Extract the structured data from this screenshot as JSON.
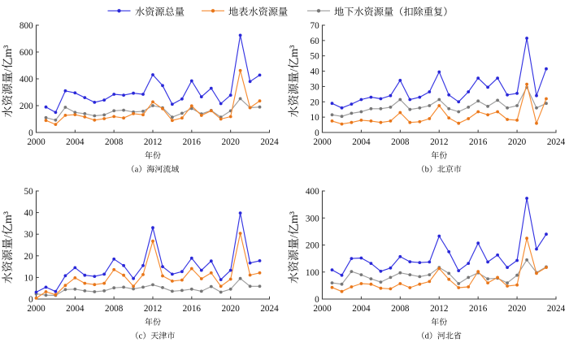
{
  "figure": {
    "type": "line-chart-figure",
    "background": "#ffffff",
    "text_color": "#111111",
    "axis_color": "#3c3c3c",
    "legend": {
      "items": [
        {
          "label": "水资源总量",
          "line_color": "#3534e2",
          "marker_color": "#2a28d8"
        },
        {
          "label": "地表水资源量",
          "line_color": "#f68c32",
          "marker_color": "#e8761a"
        },
        {
          "label": "地下水资源量（扣除重复）",
          "line_color": "#9e9e9e",
          "marker_color": "#777777"
        }
      ]
    }
  },
  "chart_data": [
    {
      "type": "line",
      "caption": "（a）海河流域",
      "xlabel": "年份",
      "ylabel": "水资源量/亿m³",
      "xlim": [
        2000,
        2024
      ],
      "ylim": [
        0,
        800
      ],
      "xticks": [
        2000,
        2004,
        2008,
        2012,
        2016,
        2020,
        2024
      ],
      "yticks": [
        0,
        200,
        400,
        600,
        800
      ],
      "x": [
        2001,
        2002,
        2003,
        2004,
        2005,
        2006,
        2007,
        2008,
        2009,
        2010,
        2011,
        2012,
        2013,
        2014,
        2015,
        2016,
        2017,
        2018,
        2019,
        2020,
        2021,
        2022,
        2023
      ],
      "series": [
        {
          "name": "水资源总量",
          "values": [
            190,
            150,
            310,
            295,
            260,
            225,
            242,
            285,
            278,
            293,
            285,
            430,
            350,
            210,
            250,
            385,
            266,
            330,
            215,
            278,
            725,
            380,
            428
          ]
        },
        {
          "name": "地表水资源量",
          "values": [
            90,
            60,
            128,
            133,
            116,
            92,
            103,
            119,
            108,
            140,
            132,
            228,
            177,
            90,
            108,
            198,
            127,
            162,
            100,
            118,
            462,
            185,
            235
          ]
        },
        {
          "name": "地下水资源量（扣除重复）",
          "values": [
            110,
            92,
            188,
            150,
            140,
            124,
            131,
            162,
            166,
            153,
            158,
            200,
            184,
            114,
            143,
            179,
            139,
            164,
            114,
            161,
            252,
            185,
            190
          ]
        }
      ]
    },
    {
      "type": "line",
      "caption": "（b）北京市",
      "xlabel": "年份",
      "ylabel": "水资源量/亿m³",
      "xlim": [
        2000,
        2024
      ],
      "ylim": [
        0,
        70
      ],
      "xticks": [
        2000,
        2004,
        2008,
        2012,
        2016,
        2020,
        2024
      ],
      "yticks": [
        0,
        10,
        20,
        30,
        40,
        50,
        60,
        70
      ],
      "x": [
        2001,
        2002,
        2003,
        2004,
        2005,
        2006,
        2007,
        2008,
        2009,
        2010,
        2011,
        2012,
        2013,
        2014,
        2015,
        2016,
        2017,
        2018,
        2019,
        2020,
        2021,
        2022,
        2023
      ],
      "series": [
        {
          "name": "水资源总量",
          "values": [
            19,
            16,
            18.5,
            21.5,
            23,
            22,
            24,
            34,
            21.5,
            23,
            26.5,
            39.5,
            24.5,
            20,
            26.5,
            35.5,
            29.5,
            35.5,
            24.5,
            25.5,
            61.5,
            24,
            41.5
          ]
        },
        {
          "name": "地表水资源量",
          "values": [
            7.5,
            5.5,
            6.5,
            8,
            7.5,
            6.5,
            7.5,
            13,
            6.5,
            7,
            9,
            17.5,
            9.5,
            6,
            9,
            13.5,
            11.5,
            13.5,
            8.5,
            8,
            31.5,
            6,
            22
          ]
        },
        {
          "name": "地下水资源量（扣除重复）",
          "values": [
            11.5,
            10.5,
            12.5,
            13.5,
            15.5,
            15.5,
            16.5,
            21.5,
            15,
            16,
            17.5,
            21.5,
            15.5,
            13.5,
            16.5,
            20.5,
            17,
            21,
            16,
            17.5,
            29.5,
            16,
            19
          ]
        }
      ]
    },
    {
      "type": "line",
      "caption": "（c）天津市",
      "xlabel": "年份",
      "ylabel": "水资源量/亿m³",
      "xlim": [
        2000,
        2024
      ],
      "ylim": [
        0,
        50
      ],
      "xticks": [
        2000,
        2004,
        2008,
        2012,
        2016,
        2020,
        2024
      ],
      "yticks": [
        0,
        10,
        20,
        30,
        40,
        50
      ],
      "x": [
        2000,
        2001,
        2002,
        2003,
        2004,
        2005,
        2006,
        2007,
        2008,
        2009,
        2010,
        2011,
        2012,
        2013,
        2014,
        2015,
        2016,
        2017,
        2018,
        2019,
        2020,
        2021,
        2022,
        2023
      ],
      "series": [
        {
          "name": "水资源总量",
          "values": [
            3.2,
            5.5,
            3.5,
            10.8,
            14.5,
            11,
            10.5,
            11.5,
            18.5,
            15.5,
            9.5,
            15.5,
            33,
            15,
            11.5,
            12.7,
            18.9,
            13.3,
            17.6,
            9,
            13.3,
            39.8,
            16.7,
            17.7
          ]
        },
        {
          "name": "地表水资源量",
          "values": [
            0.4,
            3.4,
            2,
            6.3,
            9.8,
            7.3,
            6.7,
            7.3,
            13.6,
            11,
            5.9,
            11.3,
            26.8,
            10.7,
            8.3,
            8.8,
            14.1,
            9.4,
            12.1,
            5.9,
            9.2,
            30.4,
            11.1,
            12.1
          ]
        },
        {
          "name": "地下水资源量（扣除重复）",
          "values": [
            2.4,
            1.8,
            1.7,
            4.4,
            4.6,
            3.8,
            3.4,
            3.8,
            5.2,
            5.5,
            4.7,
            5.5,
            6.6,
            5.3,
            3.6,
            4.0,
            4.6,
            3.6,
            5.8,
            3.2,
            4.6,
            9.5,
            5.9,
            5.9
          ]
        }
      ]
    },
    {
      "type": "line",
      "caption": "（d）河北省",
      "xlabel": "年份",
      "ylabel": "水资源量/亿m³",
      "xlim": [
        2000,
        2024
      ],
      "ylim": [
        0,
        400
      ],
      "xticks": [
        2000,
        2004,
        2008,
        2012,
        2016,
        2020,
        2024
      ],
      "yticks": [
        0,
        100,
        200,
        300,
        400
      ],
      "x": [
        2001,
        2002,
        2003,
        2004,
        2005,
        2006,
        2007,
        2008,
        2009,
        2010,
        2011,
        2012,
        2013,
        2014,
        2015,
        2016,
        2017,
        2018,
        2019,
        2020,
        2021,
        2022,
        2023
      ],
      "series": [
        {
          "name": "水资源总量",
          "values": [
            108,
            88,
            150,
            152,
            132,
            103,
            115,
            157,
            138,
            135,
            137,
            233,
            175,
            105,
            132,
            207,
            137,
            163,
            117,
            143,
            373,
            185,
            240
          ]
        },
        {
          "name": "地表水资源量",
          "values": [
            43,
            28,
            45,
            57,
            55,
            40,
            38,
            57,
            42,
            55,
            65,
            113,
            73,
            42,
            45,
            102,
            60,
            80,
            48,
            52,
            225,
            95,
            117
          ]
        },
        {
          "name": "地下水资源量（扣除重复）",
          "values": [
            60,
            55,
            102,
            90,
            75,
            63,
            80,
            97,
            90,
            83,
            90,
            117,
            95,
            57,
            80,
            97,
            75,
            77,
            60,
            88,
            145,
            98,
            119
          ]
        }
      ]
    }
  ]
}
